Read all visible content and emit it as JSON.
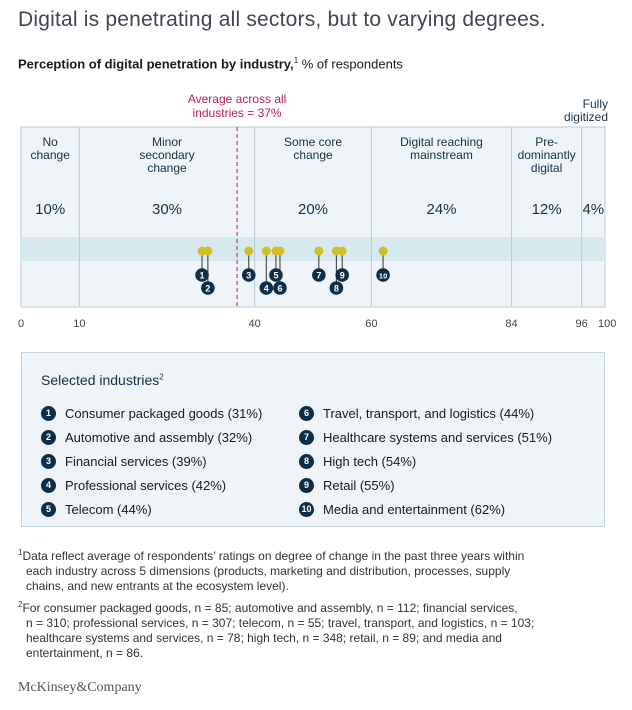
{
  "title": "Digital is penetrating all sectors, but to varying degrees.",
  "subtitle_bold": "Perception of digital penetration by industry,",
  "subtitle_sup": "1",
  "subtitle_rest": " % of respondents",
  "chart_data": {
    "type": "scatter",
    "xlim": [
      0,
      100
    ],
    "x_ticks": [
      0,
      10,
      40,
      60,
      84,
      96,
      100
    ],
    "average": {
      "value": 37,
      "label_line1": "Average across all",
      "label_line2": "industries = 37%"
    },
    "bands": [
      {
        "from": 0,
        "to": 10,
        "label": [
          "No",
          "change"
        ],
        "pct": "10%"
      },
      {
        "from": 10,
        "to": 40,
        "label": [
          "Minor",
          "secondary",
          "change"
        ],
        "pct": "30%"
      },
      {
        "from": 40,
        "to": 60,
        "label": [
          "Some core",
          "change"
        ],
        "pct": "20%"
      },
      {
        "from": 60,
        "to": 84,
        "label": [
          "Digital reaching",
          "mainstream"
        ],
        "pct": "24%"
      },
      {
        "from": 84,
        "to": 96,
        "label": [
          "Pre-",
          "dominantly",
          "digital"
        ],
        "pct": "12%"
      },
      {
        "from": 96,
        "to": 100,
        "label": [
          "Fully",
          "digitized"
        ],
        "pct": "4%"
      }
    ],
    "points": [
      {
        "id": "1",
        "x": 31,
        "row": 1
      },
      {
        "id": "2",
        "x": 32,
        "row": 2
      },
      {
        "id": "3",
        "x": 39,
        "row": 1
      },
      {
        "id": "4",
        "x": 42,
        "row": 2
      },
      {
        "id": "5",
        "x": 44,
        "row": 1
      },
      {
        "id": "6",
        "x": 44,
        "row": 2
      },
      {
        "id": "7",
        "x": 51,
        "row": 1
      },
      {
        "id": "8",
        "x": 54,
        "row": 2
      },
      {
        "id": "9",
        "x": 55,
        "row": 1
      },
      {
        "id": "10",
        "x": 62,
        "row": 1
      }
    ]
  },
  "legend": {
    "title": "Selected industries",
    "title_sup": "2",
    "left": [
      {
        "num": "1",
        "text": "Consumer packaged goods  (31%)"
      },
      {
        "num": "2",
        "text": "Automotive and assembly (32%)"
      },
      {
        "num": "3",
        "text": "Financial services (39%)"
      },
      {
        "num": "4",
        "text": "Professional services (42%)"
      },
      {
        "num": "5",
        "text": "Telecom (44%)"
      }
    ],
    "right": [
      {
        "num": "6",
        "text": "Travel, transport, and logistics (44%)"
      },
      {
        "num": "7",
        "text": "Healthcare systems and services (51%)"
      },
      {
        "num": "8",
        "text": "High tech (54%)"
      },
      {
        "num": "9",
        "text": "Retail (55%)"
      },
      {
        "num": "10",
        "text": "Media and entertainment (62%)"
      }
    ]
  },
  "footnotes": {
    "fn1_sup": "1",
    "fn1_first": "Data reflect average of respondents’ ratings on degree of change in the past three years within",
    "fn1_rest": [
      "each industry across 5 dimensions (products, marketing and distribution, processes, supply",
      "chains, and new entrants at the ecosystem level)."
    ],
    "fn2_sup": "2",
    "fn2_first": "For consumer packaged goods, n = 85; automotive and assembly, n = 112; financial services,",
    "fn2_rest": [
      "n = 310; professional services, n = 307; telecom, n = 55; travel, transport, and logistics, n = 103;",
      "healthcare systems and services, n = 78; high tech, n = 348; retail, n = 89; and media and",
      "entertainment, n = 86."
    ]
  },
  "brand": "McKinsey&Company",
  "colors": {
    "band_bg": "#eef4f7",
    "highlight_strip": "#d6e9ef",
    "grid_line": "#b9ccd6",
    "label_text": "#15324a",
    "average_line": "#c2185b",
    "point_fill": "#d1bf2a",
    "marker_fill": "#0e2e47"
  }
}
